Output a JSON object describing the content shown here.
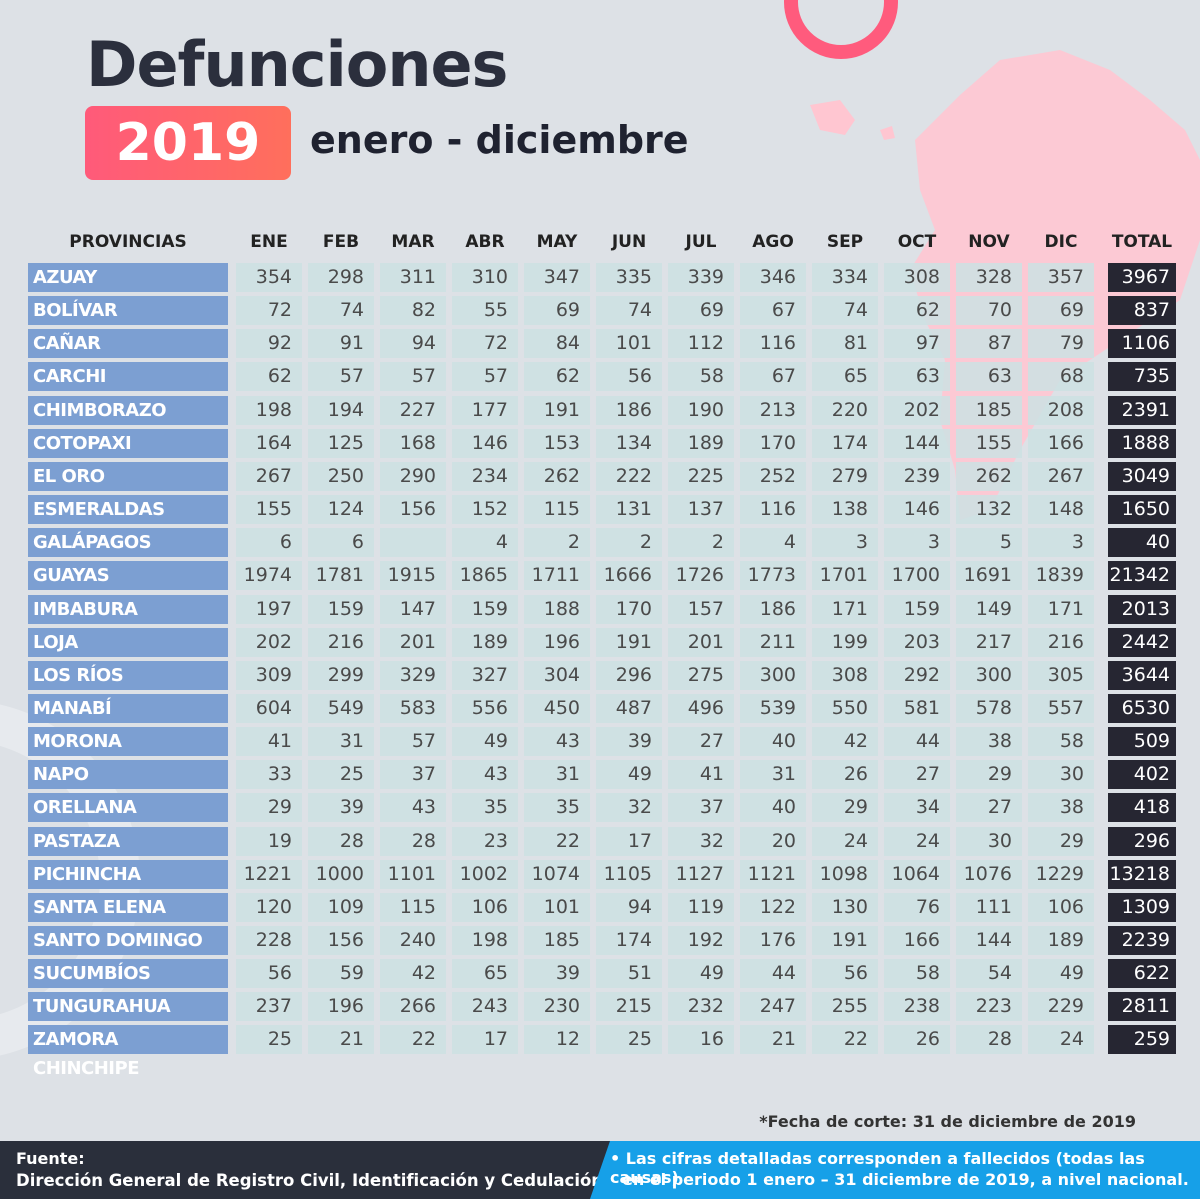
{
  "header": {
    "title": "Defunciones",
    "year": "2019",
    "period": "enero - diciembre"
  },
  "table": {
    "columns": [
      "PROVINCIAS",
      "ENE",
      "FEB",
      "MAR",
      "ABR",
      "MAY",
      "JUN",
      "JUL",
      "AGO",
      "SEP",
      "OCT",
      "NOV",
      "DIC",
      "TOTAL"
    ],
    "rows": [
      [
        "AZUAY",
        354,
        298,
        311,
        310,
        347,
        335,
        339,
        346,
        334,
        308,
        328,
        357,
        3967
      ],
      [
        "BOLÍVAR",
        72,
        74,
        82,
        55,
        69,
        74,
        69,
        67,
        74,
        62,
        70,
        69,
        837
      ],
      [
        "CAÑAR",
        92,
        91,
        94,
        72,
        84,
        101,
        112,
        116,
        81,
        97,
        87,
        79,
        1106
      ],
      [
        "CARCHI",
        62,
        57,
        57,
        57,
        62,
        56,
        58,
        67,
        65,
        63,
        63,
        68,
        735
      ],
      [
        "CHIMBORAZO",
        198,
        194,
        227,
        177,
        191,
        186,
        190,
        213,
        220,
        202,
        185,
        208,
        2391
      ],
      [
        "COTOPAXI",
        164,
        125,
        168,
        146,
        153,
        134,
        189,
        170,
        174,
        144,
        155,
        166,
        1888
      ],
      [
        "EL ORO",
        267,
        250,
        290,
        234,
        262,
        222,
        225,
        252,
        279,
        239,
        262,
        267,
        3049
      ],
      [
        "ESMERALDAS",
        155,
        124,
        156,
        152,
        115,
        131,
        137,
        116,
        138,
        146,
        132,
        148,
        1650
      ],
      [
        "GALÁPAGOS",
        6,
        6,
        null,
        4,
        2,
        2,
        2,
        4,
        3,
        3,
        5,
        3,
        40
      ],
      [
        "GUAYAS",
        1974,
        1781,
        1915,
        1865,
        1711,
        1666,
        1726,
        1773,
        1701,
        1700,
        1691,
        1839,
        21342
      ],
      [
        "IMBABURA",
        197,
        159,
        147,
        159,
        188,
        170,
        157,
        186,
        171,
        159,
        149,
        171,
        2013
      ],
      [
        "LOJA",
        202,
        216,
        201,
        189,
        196,
        191,
        201,
        211,
        199,
        203,
        217,
        216,
        2442
      ],
      [
        "LOS RÍOS",
        309,
        299,
        329,
        327,
        304,
        296,
        275,
        300,
        308,
        292,
        300,
        305,
        3644
      ],
      [
        "MANABÍ",
        604,
        549,
        583,
        556,
        450,
        487,
        496,
        539,
        550,
        581,
        578,
        557,
        6530
      ],
      [
        "MORONA SANTIAGO",
        41,
        31,
        57,
        49,
        43,
        39,
        27,
        40,
        42,
        44,
        38,
        58,
        509
      ],
      [
        "NAPO",
        33,
        25,
        37,
        43,
        31,
        49,
        41,
        31,
        26,
        27,
        29,
        30,
        402
      ],
      [
        "ORELLANA",
        29,
        39,
        43,
        35,
        35,
        32,
        37,
        40,
        29,
        34,
        27,
        38,
        418
      ],
      [
        "PASTAZA",
        19,
        28,
        28,
        23,
        22,
        17,
        32,
        20,
        24,
        24,
        30,
        29,
        296
      ],
      [
        "PICHINCHA",
        1221,
        1000,
        1101,
        1002,
        1074,
        1105,
        1127,
        1121,
        1098,
        1064,
        1076,
        1229,
        13218
      ],
      [
        "SANTA ELENA",
        120,
        109,
        115,
        106,
        101,
        94,
        119,
        122,
        130,
        76,
        111,
        106,
        1309
      ],
      [
        "SANTO DOMINGO",
        228,
        156,
        240,
        198,
        185,
        174,
        192,
        176,
        191,
        166,
        144,
        189,
        2239
      ],
      [
        "SUCUMBÍOS",
        56,
        59,
        42,
        65,
        39,
        51,
        49,
        44,
        56,
        58,
        54,
        49,
        622
      ],
      [
        "TUNGURAHUA",
        237,
        196,
        266,
        243,
        230,
        215,
        232,
        247,
        255,
        238,
        223,
        229,
        2811
      ],
      [
        "ZAMORA CHINCHIPE",
        25,
        21,
        22,
        17,
        12,
        25,
        16,
        21,
        22,
        26,
        28,
        24,
        259
      ]
    ]
  },
  "cutoff_note": "*Fecha de corte: 31 de diciembre de 2019",
  "footer": {
    "source_label": "Fuente:",
    "source": "Dirección General de Registro Civil, Identificación y Cedulación",
    "note_lines": [
      "• Las cifras detalladas corresponden a fallecidos (todas las causas)",
      "en el periodo 1 enero –  31 diciembre de 2019, a nivel nacional."
    ]
  }
}
